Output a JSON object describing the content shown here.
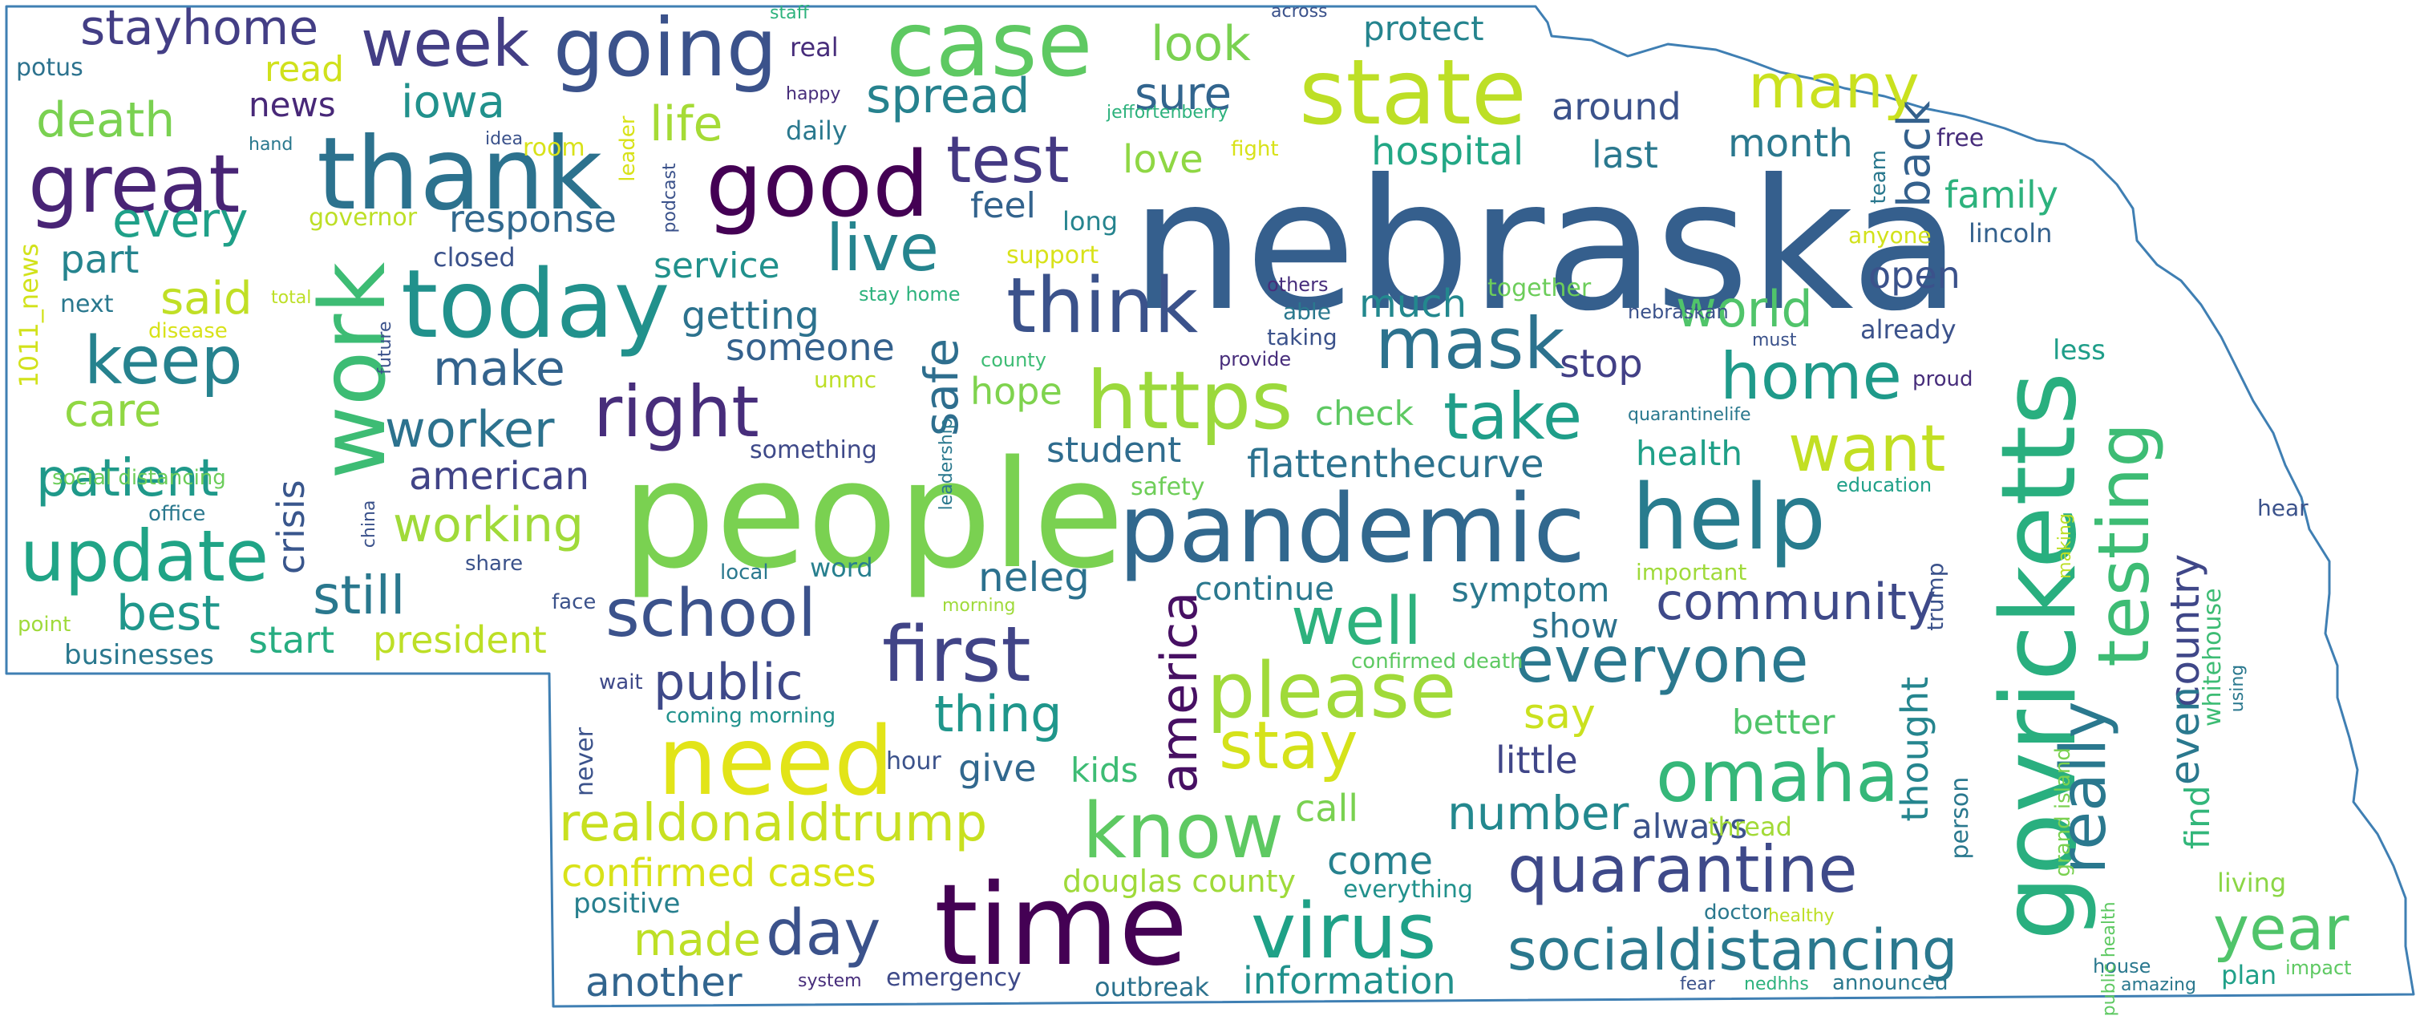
{
  "colors": {
    "outline": "#3f7fb3",
    "background": "#ffffff"
  },
  "words": [
    {
      "text": "nebraska",
      "color": "#355f8d"
    },
    {
      "text": "people",
      "color": "#7ad151"
    },
    {
      "text": "time",
      "color": "#440154"
    },
    {
      "text": "pandemic",
      "color": "#31688e"
    },
    {
      "text": "thank",
      "color": "#2c728e"
    },
    {
      "text": "today",
      "color": "#21918c"
    },
    {
      "text": "need",
      "color": "#e2e418"
    },
    {
      "text": "govricketts",
      "color": "#29af7f"
    },
    {
      "text": "work",
      "color": "#3dbc74"
    },
    {
      "text": "good",
      "color": "#440154"
    },
    {
      "text": "case",
      "color": "#5ec962"
    },
    {
      "text": "state",
      "color": "#bddf26"
    },
    {
      "text": "help",
      "color": "#287c8e"
    },
    {
      "text": "https",
      "color": "#9bd93c"
    },
    {
      "text": "great",
      "color": "#482475"
    },
    {
      "text": "going",
      "color": "#3b528b"
    },
    {
      "text": "know",
      "color": "#5ec962"
    },
    {
      "text": "virus",
      "color": "#1fa187"
    },
    {
      "text": "think",
      "color": "#3b528b"
    },
    {
      "text": "please",
      "color": "#a0da39"
    },
    {
      "text": "first",
      "color": "#414487"
    },
    {
      "text": "right",
      "color": "#472d7b"
    },
    {
      "text": "mask",
      "color": "#2c728e"
    },
    {
      "text": "update",
      "color": "#20a486"
    },
    {
      "text": "quarantine",
      "color": "#3e4989"
    },
    {
      "text": "omaha",
      "color": "#35b779"
    },
    {
      "text": "testing",
      "color": "#3dbc74"
    },
    {
      "text": "keep",
      "color": "#26828e"
    },
    {
      "text": "school",
      "color": "#3b528b"
    },
    {
      "text": "week",
      "color": "#433e85"
    },
    {
      "text": "test",
      "color": "#443983"
    },
    {
      "text": "live",
      "color": "#25848e"
    },
    {
      "text": "take",
      "color": "#1f9e89"
    },
    {
      "text": "everyone",
      "color": "#2a788e"
    },
    {
      "text": "day",
      "color": "#3b528b"
    },
    {
      "text": "stay",
      "color": "#d5e21a"
    },
    {
      "text": "socialdistancing",
      "color": "#2a788e"
    },
    {
      "text": "well",
      "color": "#2db27d"
    },
    {
      "text": "home",
      "color": "#1f9a8a"
    },
    {
      "text": "want",
      "color": "#c2df23"
    },
    {
      "text": "many",
      "color": "#cae11f"
    },
    {
      "text": "really",
      "color": "#2a788e"
    },
    {
      "text": "year",
      "color": "#50c46a"
    },
    {
      "text": "realdonaldtrump",
      "color": "#c8e020"
    },
    {
      "text": "community",
      "color": "#3e4989"
    },
    {
      "text": "america",
      "color": "#471063"
    },
    {
      "text": "still",
      "color": "#2a788e"
    },
    {
      "text": "patient",
      "color": "#1f998a"
    },
    {
      "text": "public",
      "color": "#3e4989"
    },
    {
      "text": "worker",
      "color": "#2c728e"
    },
    {
      "text": "stayhome",
      "color": "#433e85"
    },
    {
      "text": "thing",
      "color": "#1f968b"
    },
    {
      "text": "make",
      "color": "#33638d"
    },
    {
      "text": "made",
      "color": "#bddf26"
    },
    {
      "text": "life",
      "color": "#a5db36"
    },
    {
      "text": "every",
      "color": "#1fa088"
    },
    {
      "text": "look",
      "color": "#7ad151"
    },
    {
      "text": "death",
      "color": "#7ad151"
    },
    {
      "text": "best",
      "color": "#1f978b"
    },
    {
      "text": "working",
      "color": "#a0da39"
    },
    {
      "text": "iowa",
      "color": "#21918c"
    },
    {
      "text": "spread",
      "color": "#26828e"
    },
    {
      "text": "world",
      "color": "#50c46a"
    },
    {
      "text": "safe",
      "color": "#2e6e8e"
    },
    {
      "text": "care",
      "color": "#90d743"
    },
    {
      "text": "number",
      "color": "#23888e"
    },
    {
      "text": "back",
      "color": "#34618d"
    },
    {
      "text": "sure",
      "color": "#32658e"
    },
    {
      "text": "country",
      "color": "#3f4788"
    },
    {
      "text": "even",
      "color": "#2a788e"
    },
    {
      "text": "said",
      "color": "#c0df25"
    },
    {
      "text": "another",
      "color": "#32658e"
    },
    {
      "text": "flattenthecurve",
      "color": "#2c728e"
    },
    {
      "text": "confirmed cases",
      "color": "#d8e219"
    },
    {
      "text": "american",
      "color": "#414487"
    },
    {
      "text": "crisis",
      "color": "#39568c"
    },
    {
      "text": "thought",
      "color": "#25858e"
    },
    {
      "text": "neleg",
      "color": "#2c718e"
    },
    {
      "text": "say",
      "color": "#cae11f"
    },
    {
      "text": "much",
      "color": "#23888e"
    },
    {
      "text": "getting",
      "color": "#2c728e"
    },
    {
      "text": "someone",
      "color": "#34618d"
    },
    {
      "text": "president",
      "color": "#bddf26"
    },
    {
      "text": "hospital",
      "color": "#22a785"
    },
    {
      "text": "around",
      "color": "#3b528b"
    },
    {
      "text": "little",
      "color": "#404688"
    },
    {
      "text": "come",
      "color": "#26818e"
    },
    {
      "text": "response",
      "color": "#31688e"
    },
    {
      "text": "love",
      "color": "#8fd744"
    },
    {
      "text": "month",
      "color": "#2a788e"
    },
    {
      "text": "family",
      "color": "#2db27d"
    },
    {
      "text": "call",
      "color": "#7ad151"
    },
    {
      "text": "last",
      "color": "#2a788e"
    },
    {
      "text": "information",
      "color": "#21918c"
    },
    {
      "text": "part",
      "color": "#25848e"
    },
    {
      "text": "open",
      "color": "#3b528b"
    },
    {
      "text": "hope",
      "color": "#7fd34e"
    },
    {
      "text": "start",
      "color": "#27ad81"
    },
    {
      "text": "give",
      "color": "#31688e"
    },
    {
      "text": "student",
      "color": "#2f6c8e"
    },
    {
      "text": "symptom",
      "color": "#2a788e"
    },
    {
      "text": "stop",
      "color": "#424086"
    },
    {
      "text": "show",
      "color": "#2c728e"
    },
    {
      "text": "always",
      "color": "#3b528b"
    },
    {
      "text": "service",
      "color": "#21918c"
    },
    {
      "text": "health",
      "color": "#1fa088"
    },
    {
      "text": "better",
      "color": "#50c46a"
    },
    {
      "text": "kids",
      "color": "#3dbc74"
    },
    {
      "text": "feel",
      "color": "#33638d"
    },
    {
      "text": "check",
      "color": "#5ec962"
    },
    {
      "text": "continue",
      "color": "#2a788e"
    },
    {
      "text": "find",
      "color": "#32b67a"
    },
    {
      "text": "protect",
      "color": "#25848e"
    },
    {
      "text": "news",
      "color": "#482878"
    },
    {
      "text": "read",
      "color": "#d0e11c"
    },
    {
      "text": "douglas county",
      "color": "#9fda3a"
    },
    {
      "text": "emergency",
      "color": "#3e4a89"
    },
    {
      "text": "everything",
      "color": "#21918c"
    },
    {
      "text": "positive",
      "color": "#277f8e"
    },
    {
      "text": "businesses",
      "color": "#2a788e"
    },
    {
      "text": "next",
      "color": "#2a788e"
    },
    {
      "text": "closed",
      "color": "#3b528b"
    },
    {
      "text": "outbreak",
      "color": "#2c728e"
    },
    {
      "text": "lincoln",
      "color": "#34618d"
    },
    {
      "text": "long",
      "color": "#25848e"
    },
    {
      "text": "potus",
      "color": "#2c728e"
    },
    {
      "text": "together",
      "color": "#6ccd5a"
    },
    {
      "text": "already",
      "color": "#3b528b"
    },
    {
      "text": "something",
      "color": "#3e4989"
    },
    {
      "text": "word",
      "color": "#277f8e"
    },
    {
      "text": "thread",
      "color": "#a2da37"
    },
    {
      "text": "less",
      "color": "#1f9e89"
    },
    {
      "text": "living",
      "color": "#8bd646"
    },
    {
      "text": "plan",
      "color": "#1fa088"
    },
    {
      "text": "safety",
      "color": "#6ece58"
    },
    {
      "text": "hour",
      "color": "#3b528b"
    },
    {
      "text": "important",
      "color": "#9fda3a"
    },
    {
      "text": "person",
      "color": "#2a788e"
    },
    {
      "text": "1011_news",
      "color": "#d2e21b"
    },
    {
      "text": "social distancing",
      "color": "#6ccd5a"
    },
    {
      "text": "daily",
      "color": "#2a788e"
    },
    {
      "text": "real",
      "color": "#472d7b"
    },
    {
      "text": "support",
      "color": "#d8e219"
    },
    {
      "text": "anyone",
      "color": "#d2e21b"
    },
    {
      "text": "room",
      "color": "#d8e219"
    },
    {
      "text": "governor",
      "color": "#bddf26"
    },
    {
      "text": "disease",
      "color": "#d8e219"
    },
    {
      "text": "office",
      "color": "#2a788e"
    },
    {
      "text": "share",
      "color": "#3b528b"
    },
    {
      "text": "point",
      "color": "#9fda3a"
    },
    {
      "text": "local",
      "color": "#2a788e"
    },
    {
      "text": "face",
      "color": "#3b528b"
    },
    {
      "text": "wait",
      "color": "#3e4989"
    },
    {
      "text": "never",
      "color": "#3b528b"
    },
    {
      "text": "coming morning",
      "color": "#21918c"
    },
    {
      "text": "confirmed death",
      "color": "#5ec962"
    },
    {
      "text": "system",
      "color": "#472d7b"
    },
    {
      "text": "doctor",
      "color": "#2a788e"
    },
    {
      "text": "healthy",
      "color": "#bddf26"
    },
    {
      "text": "fear",
      "color": "#3b528b"
    },
    {
      "text": "nedhhs",
      "color": "#2db27d"
    },
    {
      "text": "announced",
      "color": "#2a788e"
    },
    {
      "text": "amazing",
      "color": "#2a788e"
    },
    {
      "text": "impact",
      "color": "#5ec962"
    },
    {
      "text": "house",
      "color": "#2a788e"
    },
    {
      "text": "hear",
      "color": "#3b528b"
    },
    {
      "text": "education",
      "color": "#1fa088"
    },
    {
      "text": "trump",
      "color": "#3b528b"
    },
    {
      "text": "making",
      "color": "#bddf26"
    },
    {
      "text": "whitehouse",
      "color": "#3dbc74"
    },
    {
      "text": "using",
      "color": "#2a788e"
    },
    {
      "text": "grand island",
      "color": "#7ad151"
    },
    {
      "text": "public health",
      "color": "#5ec962"
    },
    {
      "text": "proud",
      "color": "#472d7b"
    },
    {
      "text": "must",
      "color": "#3b528b"
    },
    {
      "text": "quarantinelife",
      "color": "#2a788e"
    },
    {
      "text": "nebraskan",
      "color": "#3b528b"
    },
    {
      "text": "others",
      "color": "#472d7b"
    },
    {
      "text": "able",
      "color": "#2a788e"
    },
    {
      "text": "taking",
      "color": "#3b528b"
    },
    {
      "text": "provide",
      "color": "#472d7b"
    },
    {
      "text": "stay home",
      "color": "#2db27d"
    },
    {
      "text": "county",
      "color": "#3dbc74"
    },
    {
      "text": "leadership",
      "color": "#2a788e"
    },
    {
      "text": "unmc",
      "color": "#bddf26"
    },
    {
      "text": "china",
      "color": "#3b528b"
    },
    {
      "text": "future",
      "color": "#3b528b"
    },
    {
      "text": "total",
      "color": "#bddf26"
    },
    {
      "text": "podcast",
      "color": "#3b528b"
    },
    {
      "text": "leader",
      "color": "#d8e219"
    },
    {
      "text": "hand",
      "color": "#2a788e"
    },
    {
      "text": "idea",
      "color": "#3b528b"
    },
    {
      "text": "happy",
      "color": "#472d7b"
    },
    {
      "text": "staff",
      "color": "#2db27d"
    },
    {
      "text": "across",
      "color": "#3b528b"
    },
    {
      "text": "jeffortenberry",
      "color": "#2db27d"
    },
    {
      "text": "fight",
      "color": "#d8e219"
    },
    {
      "text": "morning",
      "color": "#9fda3a"
    },
    {
      "text": "free",
      "color": "#472d7b"
    },
    {
      "text": "team",
      "color": "#2a788e"
    }
  ]
}
